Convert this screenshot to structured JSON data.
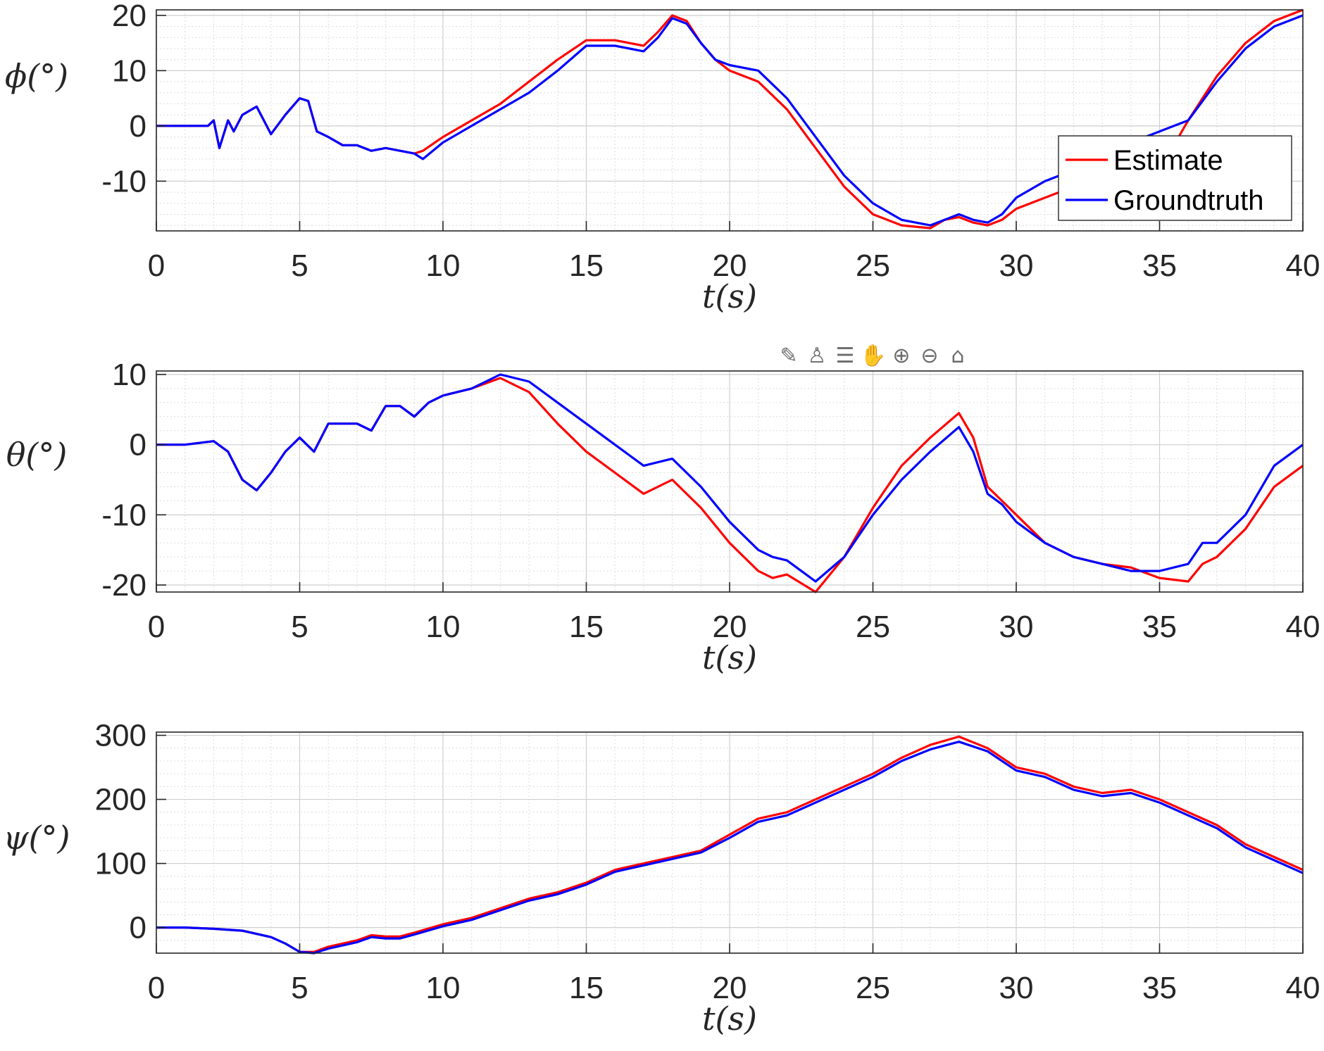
{
  "colors": {
    "estimate": "#ff0000",
    "groundtruth": "#0000ff",
    "axes": "#262626",
    "grid": "#dcdcdc"
  },
  "toolbar": {
    "icons": [
      "export-icon",
      "brush-icon",
      "datatip-icon",
      "pan-icon",
      "zoom-in-icon",
      "zoom-out-icon",
      "home-icon"
    ],
    "glyphs": [
      "✎",
      "♙",
      "☰",
      "✋",
      "⊕",
      "⊖",
      "⌂"
    ]
  },
  "chart_data": [
    {
      "type": "line",
      "xlabel": "t(s)",
      "ylabel": "ϕ(°)",
      "xlim": [
        0,
        40
      ],
      "ylim": [
        -19,
        21
      ],
      "xticks": [
        0,
        5,
        10,
        15,
        20,
        25,
        30,
        35,
        40
      ],
      "yticks": [
        -10,
        0,
        10,
        20
      ],
      "xtick_labels": [
        "0",
        "5",
        "10",
        "15",
        "20",
        "25",
        "30",
        "35",
        "40"
      ],
      "ytick_labels": [
        "-10",
        "0",
        "10",
        "20"
      ],
      "grid": true,
      "legend": {
        "position": "right-middle",
        "entries": [
          "Estimate",
          "Groundtruth"
        ]
      },
      "series": [
        {
          "name": "Estimate",
          "color": "#ff0000",
          "x": [
            0,
            1,
            1.8,
            2,
            2.2,
            2.5,
            2.7,
            3,
            3.5,
            4,
            4.5,
            5,
            5.3,
            5.6,
            6,
            6.5,
            7,
            7.5,
            8,
            8.5,
            9,
            9.3,
            10,
            11,
            12,
            13,
            14,
            15,
            16,
            17,
            17.5,
            18,
            18.5,
            19,
            19.5,
            20,
            21,
            22,
            23,
            24,
            25,
            26,
            27,
            27.5,
            28,
            28.5,
            29,
            29.5,
            30,
            31,
            32,
            33,
            34,
            35,
            36,
            37,
            38,
            39,
            40
          ],
          "y": [
            0,
            0,
            0,
            1,
            -4,
            1,
            -1,
            2,
            3.5,
            -1.5,
            2,
            5,
            4.5,
            -1,
            -2,
            -3.5,
            -3.5,
            -4.5,
            -4,
            -4.5,
            -5,
            -4.5,
            -2,
            1,
            4,
            8,
            12,
            15.5,
            15.5,
            14.5,
            17,
            20,
            19,
            15,
            12,
            10,
            8,
            3,
            -4,
            -11,
            -16,
            -18,
            -18.5,
            -17,
            -16.5,
            -17.5,
            -18,
            -17,
            -15,
            -13,
            -11,
            -9,
            -8,
            -8,
            1,
            9,
            15,
            19,
            21
          ]
        },
        {
          "name": "Groundtruth",
          "color": "#0000ff",
          "x": [
            0,
            1,
            1.8,
            2,
            2.2,
            2.5,
            2.7,
            3,
            3.5,
            4,
            4.5,
            5,
            5.3,
            5.6,
            6,
            6.5,
            7,
            7.5,
            8,
            8.5,
            9,
            9.3,
            10,
            11,
            12,
            13,
            14,
            15,
            16,
            17,
            17.5,
            18,
            18.5,
            19,
            19.5,
            20,
            21,
            22,
            23,
            24,
            25,
            26,
            27,
            27.5,
            28,
            28.5,
            29,
            29.5,
            30,
            31,
            32,
            33,
            34,
            35,
            36,
            37,
            38,
            39,
            40
          ],
          "y": [
            0,
            0,
            0,
            1,
            -4,
            1,
            -1,
            2,
            3.5,
            -1.5,
            2,
            5,
            4.5,
            -1,
            -2,
            -3.5,
            -3.5,
            -4.5,
            -4,
            -4.5,
            -5,
            -6,
            -3,
            0,
            3,
            6,
            10,
            14.5,
            14.5,
            13.5,
            16,
            19.5,
            18.5,
            15,
            12,
            11,
            10,
            5,
            -2,
            -9,
            -14,
            -17,
            -18,
            -17,
            -16,
            -17,
            -17.5,
            -16,
            -13,
            -10,
            -8,
            -5,
            -3,
            -1,
            1,
            8,
            14,
            18,
            20
          ]
        }
      ]
    },
    {
      "type": "line",
      "xlabel": "t(s)",
      "ylabel": "θ(°)",
      "xlim": [
        0,
        40
      ],
      "ylim": [
        -21,
        10.5
      ],
      "xticks": [
        0,
        5,
        10,
        15,
        20,
        25,
        30,
        35,
        40
      ],
      "yticks": [
        -20,
        -10,
        0,
        10
      ],
      "xtick_labels": [
        "0",
        "5",
        "10",
        "15",
        "20",
        "25",
        "30",
        "35",
        "40"
      ],
      "ytick_labels": [
        "-20",
        "-10",
        "0",
        "10"
      ],
      "grid": true,
      "series": [
        {
          "name": "Estimate",
          "color": "#ff0000",
          "x": [
            0,
            1,
            2,
            2.5,
            3,
            3.5,
            4,
            4.5,
            5,
            5.5,
            6,
            7,
            7.5,
            8,
            8.5,
            9,
            9.5,
            10,
            11,
            12,
            13,
            14,
            15,
            16,
            17,
            18,
            19,
            20,
            21,
            21.5,
            22,
            23,
            24,
            25,
            26,
            27,
            28,
            28.5,
            29,
            29.5,
            30,
            31,
            32,
            33,
            34,
            35,
            36,
            36.5,
            37,
            38,
            39,
            40
          ],
          "y": [
            0,
            0,
            0.5,
            -1,
            -5,
            -6.5,
            -4,
            -1,
            1,
            -1,
            3,
            3,
            2,
            5.5,
            5.5,
            4,
            6,
            7,
            8,
            9.5,
            7.5,
            3,
            -1,
            -4,
            -7,
            -5,
            -9,
            -14,
            -18,
            -19,
            -18.5,
            -21,
            -16,
            -9,
            -3,
            1,
            4.5,
            1,
            -6,
            -8,
            -10,
            -14,
            -16,
            -17,
            -17.5,
            -19,
            -19.5,
            -17,
            -16,
            -12,
            -6,
            -3
          ]
        },
        {
          "name": "Groundtruth",
          "color": "#0000ff",
          "x": [
            0,
            1,
            2,
            2.5,
            3,
            3.5,
            4,
            4.5,
            5,
            5.5,
            6,
            7,
            7.5,
            8,
            8.5,
            9,
            9.5,
            10,
            11,
            12,
            13,
            14,
            15,
            16,
            17,
            18,
            19,
            20,
            21,
            21.5,
            22,
            23,
            24,
            25,
            26,
            27,
            28,
            28.5,
            29,
            29.5,
            30,
            31,
            32,
            33,
            34,
            35,
            36,
            36.5,
            37,
            38,
            39,
            40
          ],
          "y": [
            0,
            0,
            0.5,
            -1,
            -5,
            -6.5,
            -4,
            -1,
            1,
            -1,
            3,
            3,
            2,
            5.5,
            5.5,
            4,
            6,
            7,
            8,
            10,
            9,
            6,
            3,
            0,
            -3,
            -2,
            -6,
            -11,
            -15,
            -16,
            -16.5,
            -19.5,
            -16,
            -10,
            -5,
            -1,
            2.5,
            -1,
            -7,
            -8.5,
            -11,
            -14,
            -16,
            -17,
            -18,
            -18,
            -17,
            -14,
            -14,
            -10,
            -3,
            0
          ]
        }
      ]
    },
    {
      "type": "line",
      "xlabel": "t(s)",
      "ylabel": "ψ(°)",
      "xlim": [
        0,
        40
      ],
      "ylim": [
        -40,
        305
      ],
      "xticks": [
        0,
        5,
        10,
        15,
        20,
        25,
        30,
        35,
        40
      ],
      "yticks": [
        0,
        100,
        200,
        300
      ],
      "xtick_labels": [
        "0",
        "5",
        "10",
        "15",
        "20",
        "25",
        "30",
        "35",
        "40"
      ],
      "ytick_labels": [
        "0",
        "100",
        "200",
        "300"
      ],
      "grid": true,
      "series": [
        {
          "name": "Estimate",
          "color": "#ff0000",
          "x": [
            0,
            1,
            2,
            3,
            4,
            4.5,
            5,
            5.5,
            6,
            7,
            7.5,
            8,
            8.5,
            9,
            10,
            11,
            12,
            13,
            14,
            15,
            16,
            17,
            18,
            19,
            20,
            21,
            22,
            23,
            24,
            25,
            26,
            27,
            28,
            29,
            30,
            31,
            32,
            33,
            34,
            35,
            36,
            37,
            38,
            39,
            40
          ],
          "y": [
            0,
            0,
            -2,
            -5,
            -15,
            -25,
            -38,
            -38,
            -30,
            -20,
            -12,
            -14,
            -14,
            -8,
            5,
            15,
            30,
            45,
            55,
            70,
            90,
            100,
            110,
            120,
            145,
            170,
            180,
            200,
            220,
            240,
            265,
            285,
            298,
            280,
            250,
            240,
            220,
            210,
            215,
            200,
            180,
            160,
            130,
            110,
            90
          ]
        },
        {
          "name": "Groundtruth",
          "color": "#0000ff",
          "x": [
            0,
            1,
            2,
            3,
            4,
            4.5,
            5,
            5.5,
            6,
            7,
            7.5,
            8,
            8.5,
            9,
            10,
            11,
            12,
            13,
            14,
            15,
            16,
            17,
            18,
            19,
            20,
            21,
            22,
            23,
            24,
            25,
            26,
            27,
            28,
            29,
            30,
            31,
            32,
            33,
            34,
            35,
            36,
            37,
            38,
            39,
            40
          ],
          "y": [
            0,
            0,
            -2,
            -5,
            -15,
            -25,
            -38,
            -40,
            -33,
            -23,
            -15,
            -17,
            -17,
            -11,
            2,
            12,
            27,
            42,
            52,
            67,
            87,
            97,
            107,
            117,
            140,
            165,
            175,
            195,
            215,
            235,
            260,
            278,
            290,
            275,
            245,
            235,
            215,
            205,
            210,
            195,
            175,
            155,
            125,
            105,
            85
          ]
        }
      ]
    }
  ]
}
